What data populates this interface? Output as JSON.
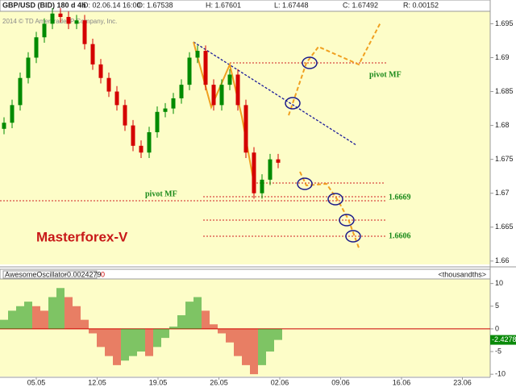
{
  "chart_data": {
    "type": "candlestick",
    "header": [
      "GBP/USD (BID) 180 d 4h",
      "D: 02.06.14 16:00",
      "O: 1.67538",
      "H: 1.67601",
      "L: 1.67448",
      "C: 1.67492",
      "R: 0.00152"
    ],
    "copyright": "2014 © TD Ameritrade IP Company, Inc.",
    "open": [
      1.6795,
      1.6804,
      1.683,
      1.687,
      1.69,
      1.693,
      1.695,
      1.6965,
      1.696,
      1.695,
      1.6955,
      1.692,
      1.689,
      1.687,
      1.685,
      1.683,
      1.68,
      1.677,
      1.676,
      1.679,
      1.682,
      1.6825,
      1.684,
      1.686,
      1.69,
      1.691,
      1.686,
      1.683,
      1.686,
      1.6875,
      1.683,
      1.676,
      1.67,
      1.672,
      1.675
    ],
    "high": [
      1.6812,
      1.6838,
      1.6878,
      1.6908,
      1.6938,
      1.6958,
      1.6973,
      1.6973,
      1.6968,
      1.6963,
      1.6963,
      1.6928,
      1.6898,
      1.6878,
      1.6858,
      1.6838,
      1.6808,
      1.6778,
      1.6798,
      1.6828,
      1.6833,
      1.6848,
      1.6868,
      1.6908,
      1.6918,
      1.6918,
      1.6868,
      1.6868,
      1.6883,
      1.6883,
      1.6838,
      1.6768,
      1.6728,
      1.6758,
      1.6758
    ],
    "low": [
      1.6787,
      1.6796,
      1.6822,
      1.6862,
      1.6892,
      1.6922,
      1.6942,
      1.6952,
      1.6942,
      1.6942,
      1.6912,
      1.6882,
      1.6862,
      1.6842,
      1.6822,
      1.6792,
      1.6762,
      1.6752,
      1.6752,
      1.6782,
      1.6812,
      1.6817,
      1.6832,
      1.6852,
      1.6892,
      1.6852,
      1.6822,
      1.6822,
      1.6852,
      1.6822,
      1.6752,
      1.6692,
      1.6692,
      1.6712,
      1.6737
    ],
    "close": [
      1.6804,
      1.683,
      1.687,
      1.69,
      1.693,
      1.695,
      1.6965,
      1.696,
      1.695,
      1.6955,
      1.692,
      1.689,
      1.687,
      1.685,
      1.683,
      1.68,
      1.677,
      1.676,
      1.679,
      1.682,
      1.6825,
      1.684,
      1.686,
      1.69,
      1.691,
      1.686,
      1.683,
      1.686,
      1.6875,
      1.683,
      1.676,
      1.67,
      1.672,
      1.675,
      1.6745
    ],
    "up_color": "#008a00",
    "down_color": "#d40000",
    "ylim": [
      1.6595,
      1.6985
    ],
    "yticks": [
      1.695,
      1.69,
      1.685,
      1.68,
      1.675,
      1.67,
      1.665,
      1.66
    ],
    "annotations": {
      "pivot_top": "pivot MF",
      "pivot_bottom": "pivot MF",
      "level_1": "1.6669",
      "level_2": "1.6606",
      "brand": "Masterforex-V"
    },
    "oscillator": {
      "name": "AwesomeOscillator",
      "value": "-0.0024279",
      "shift": "0",
      "units": "<thousandths>",
      "values": [
        2,
        4,
        5,
        6,
        5,
        4,
        7,
        9,
        7,
        5,
        2,
        -1,
        -4,
        -6,
        -8,
        -7,
        -6,
        -5,
        -6,
        -4,
        -2,
        0.5,
        3,
        6,
        7,
        4,
        1,
        -1,
        -3,
        -6,
        -8,
        -10,
        -8,
        -5,
        -2.4278
      ],
      "last_label": "-2.4278",
      "ylim": [
        -10.5,
        11
      ],
      "yticks": [
        10,
        5,
        0,
        -5,
        -10
      ]
    },
    "x_labels": [
      "05.05",
      "12.05",
      "19.05",
      "26.05",
      "02.06",
      "09.06",
      "16.06",
      "23.06"
    ]
  }
}
